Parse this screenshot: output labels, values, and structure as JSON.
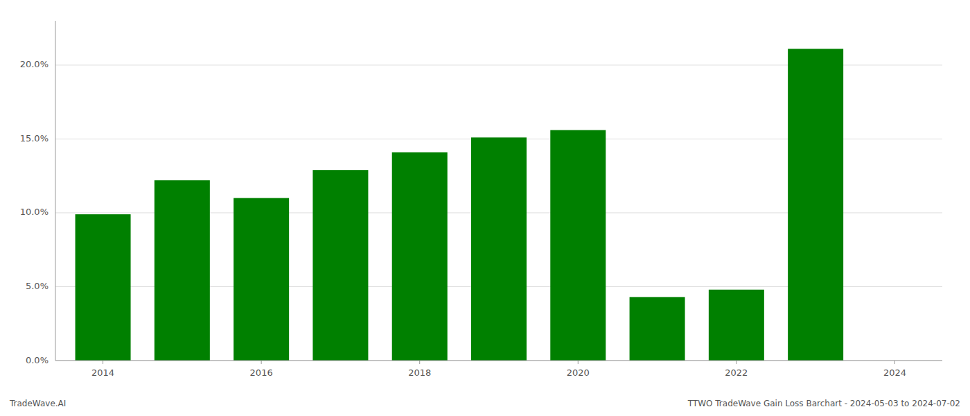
{
  "chart_data": {
    "type": "bar",
    "x": [
      2014,
      2015,
      2016,
      2017,
      2018,
      2019,
      2020,
      2021,
      2022,
      2023
    ],
    "values": [
      0.099,
      0.122,
      0.11,
      0.129,
      0.141,
      0.151,
      0.156,
      0.043,
      0.048,
      0.211
    ],
    "color": "#008000",
    "xlim": [
      2013.4,
      2024.6
    ],
    "xticks": [
      2014,
      2016,
      2018,
      2020,
      2022,
      2024
    ],
    "ylim": [
      0,
      0.23
    ],
    "yticks": [
      {
        "value": 0.0,
        "label": "0.0%"
      },
      {
        "value": 0.05,
        "label": "5.0%"
      },
      {
        "value": 0.1,
        "label": "10.0%"
      },
      {
        "value": 0.15,
        "label": "15.0%"
      },
      {
        "value": 0.2,
        "label": "20.0%"
      }
    ],
    "grid": true,
    "annotations": [
      "TradeWave.AI",
      "TTWO TradeWave Gain Loss Barchart - 2024-05-03 to 2024-07-02"
    ]
  }
}
